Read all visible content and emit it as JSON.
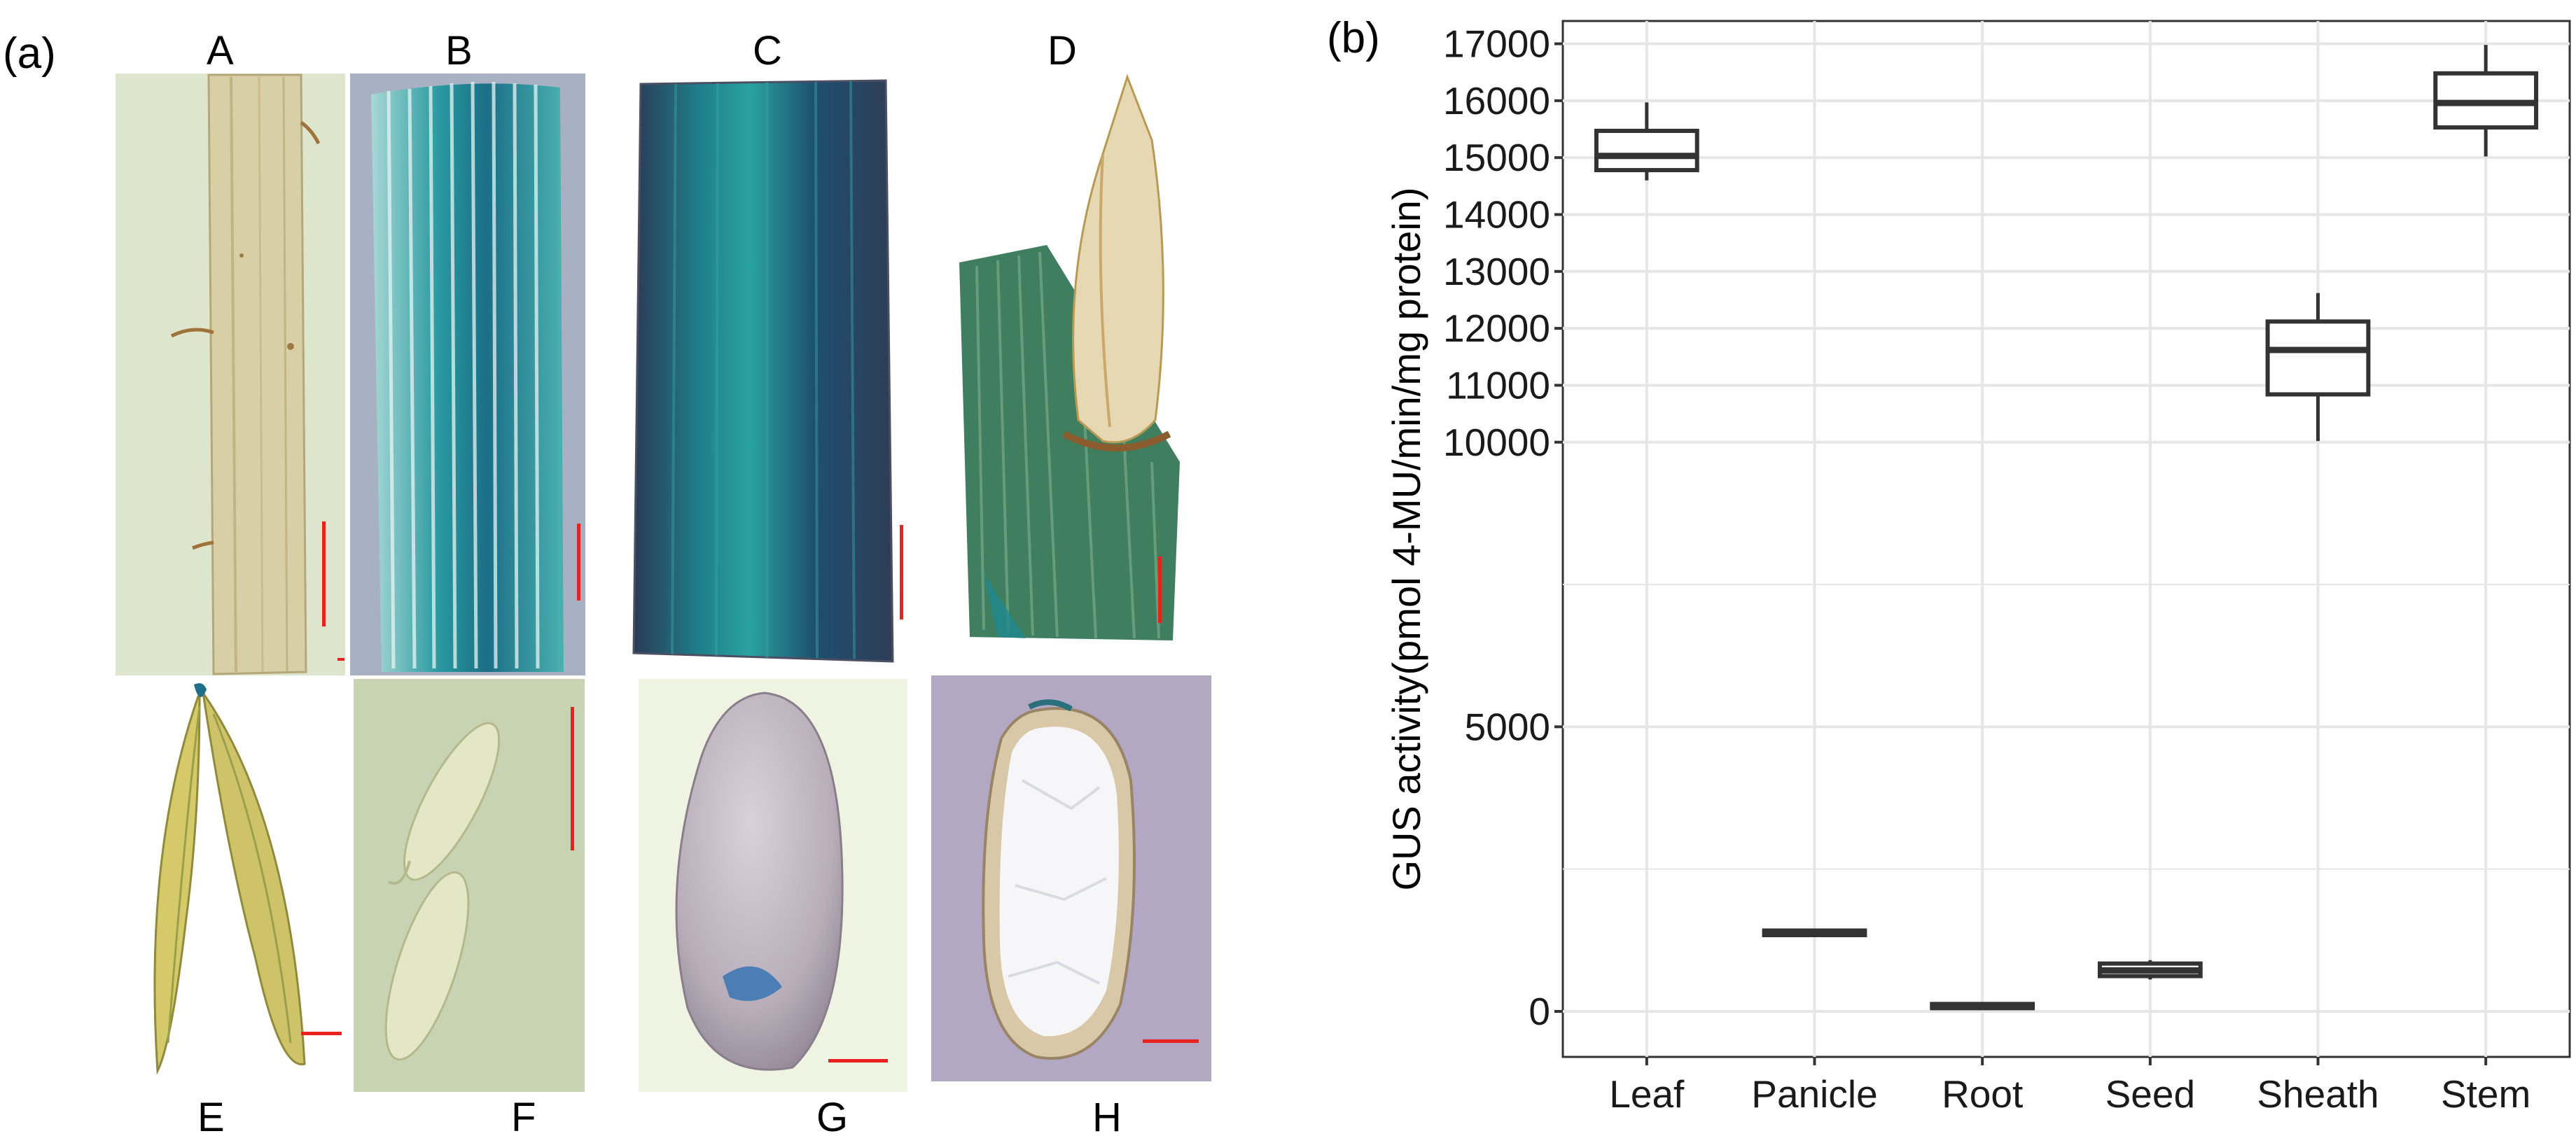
{
  "figure": {
    "panel_a_label": "(a)",
    "panel_b_label": "(b)",
    "photo_labels": [
      "A",
      "B",
      "C",
      "D",
      "E",
      "F",
      "G",
      "H"
    ],
    "colors": {
      "gus_blue": "#1f8a8f",
      "scale_bar": "#e8231f",
      "grid": "#e6e6e6",
      "box": "#333333"
    }
  },
  "chart_data": {
    "type": "box",
    "title": "",
    "xlabel": "",
    "ylabel": "GUS activity(pmol 4-MU/min/mg protein)",
    "categories": [
      "Leaf",
      "Panicle",
      "Root",
      "Seed",
      "Sheath",
      "Stem"
    ],
    "boxes": [
      {
        "name": "Leaf",
        "min": 14600,
        "q1": 14780,
        "median": 15030,
        "q3": 15470,
        "max": 15970
      },
      {
        "name": "Panicle",
        "min": 1330,
        "q1": 1340,
        "median": 1380,
        "q3": 1420,
        "max": 1440
      },
      {
        "name": "Root",
        "min": 80,
        "q1": 90,
        "median": 110,
        "q3": 130,
        "max": 140
      },
      {
        "name": "Seed",
        "min": 560,
        "q1": 620,
        "median": 720,
        "q3": 840,
        "max": 900
      },
      {
        "name": "Sheath",
        "min": 10020,
        "q1": 10840,
        "median": 11620,
        "q3": 12120,
        "max": 12620
      },
      {
        "name": "Stem",
        "min": 15020,
        "q1": 15530,
        "median": 15960,
        "q3": 16480,
        "max": 16980
      }
    ],
    "ylim": [
      -800,
      17400
    ],
    "yticks": [
      0,
      5000,
      10000,
      11000,
      12000,
      13000,
      14000,
      15000,
      16000,
      17000
    ],
    "yminor": [
      2500,
      7500
    ],
    "grid": true,
    "legend": "none"
  }
}
